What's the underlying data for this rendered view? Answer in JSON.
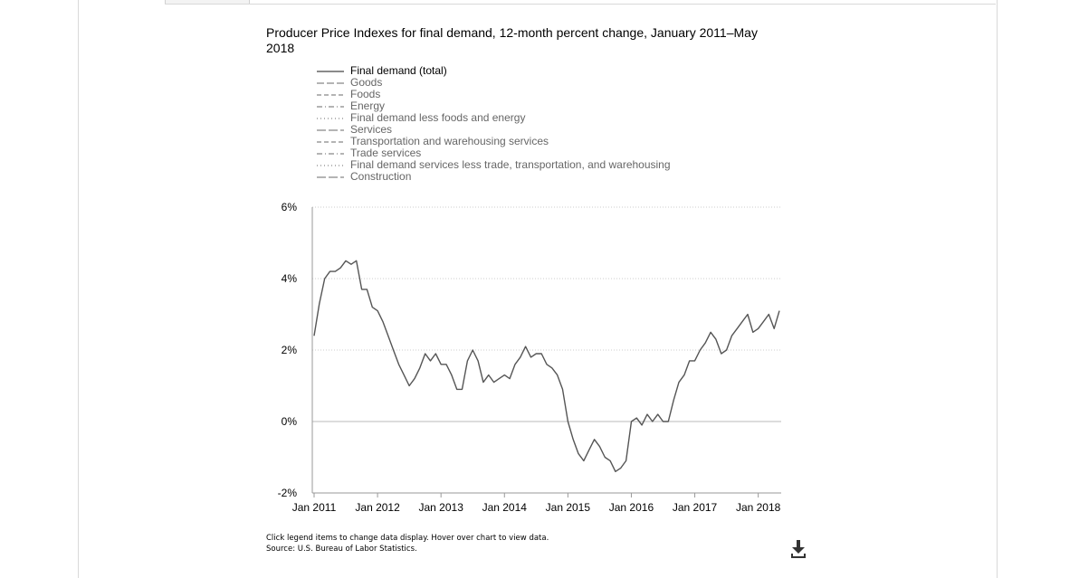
{
  "chart_data": {
    "type": "line",
    "title": "Producer Price Indexes for final demand, 12-month percent change, January 2011–May 2018",
    "xlabel": "",
    "ylabel": "",
    "ylim": [
      -2,
      6
    ],
    "yticks": [
      "6%",
      "4%",
      "2%",
      "0%",
      "-2%"
    ],
    "ytick_values": [
      6,
      4,
      2,
      0,
      -2
    ],
    "xticks": [
      "Jan 2011",
      "Jan 2012",
      "Jan 2013",
      "Jan 2014",
      "Jan 2015",
      "Jan 2016",
      "Jan 2017",
      "Jan 2018"
    ],
    "x_start": "Jan 2011",
    "x_end": "May 2018",
    "grid": "horizontal-dotted",
    "legend_position": "top",
    "series": [
      {
        "name": "Final demand (total)",
        "active": true,
        "values": [
          2.4,
          3.3,
          4.0,
          4.2,
          4.2,
          4.3,
          4.5,
          4.4,
          4.5,
          3.7,
          3.7,
          3.2,
          3.1,
          2.8,
          2.4,
          2.0,
          1.6,
          1.3,
          1.0,
          1.2,
          1.5,
          1.9,
          1.7,
          1.9,
          1.6,
          1.6,
          1.3,
          0.9,
          0.9,
          1.7,
          2.0,
          1.7,
          1.1,
          1.3,
          1.1,
          1.2,
          1.3,
          1.2,
          1.6,
          1.8,
          2.1,
          1.8,
          1.9,
          1.9,
          1.6,
          1.5,
          1.3,
          0.9,
          0.0,
          -0.5,
          -0.9,
          -1.1,
          -0.8,
          -0.5,
          -0.7,
          -1.0,
          -1.1,
          -1.4,
          -1.3,
          -1.1,
          0.0,
          0.1,
          -0.1,
          0.2,
          0.0,
          0.2,
          0.0,
          0.0,
          0.6,
          1.1,
          1.3,
          1.7,
          1.7,
          2.0,
          2.2,
          2.5,
          2.3,
          1.9,
          2.0,
          2.4,
          2.6,
          2.8,
          3.0,
          2.5,
          2.6,
          2.8,
          3.0,
          2.6,
          3.1
        ]
      },
      {
        "name": "Goods",
        "active": false
      },
      {
        "name": "Foods",
        "active": false
      },
      {
        "name": "Energy",
        "active": false
      },
      {
        "name": "Final demand less foods and energy",
        "active": false
      },
      {
        "name": "Services",
        "active": false
      },
      {
        "name": "Transportation and warehousing services",
        "active": false
      },
      {
        "name": "Trade services",
        "active": false
      },
      {
        "name": "Final demand services less trade, transportation, and warehousing",
        "active": false
      },
      {
        "name": "Construction",
        "active": false
      }
    ]
  },
  "footnote": {
    "line1": "Click legend items to change data display. Hover over chart to view data.",
    "line2": "Source: U.S. Bureau of Labor Statistics."
  },
  "icons": {
    "download": "download-icon"
  },
  "colors": {
    "line": "#555555",
    "axis": "#999999",
    "grid": "#cccccc",
    "zero": "#bbbbbb"
  }
}
